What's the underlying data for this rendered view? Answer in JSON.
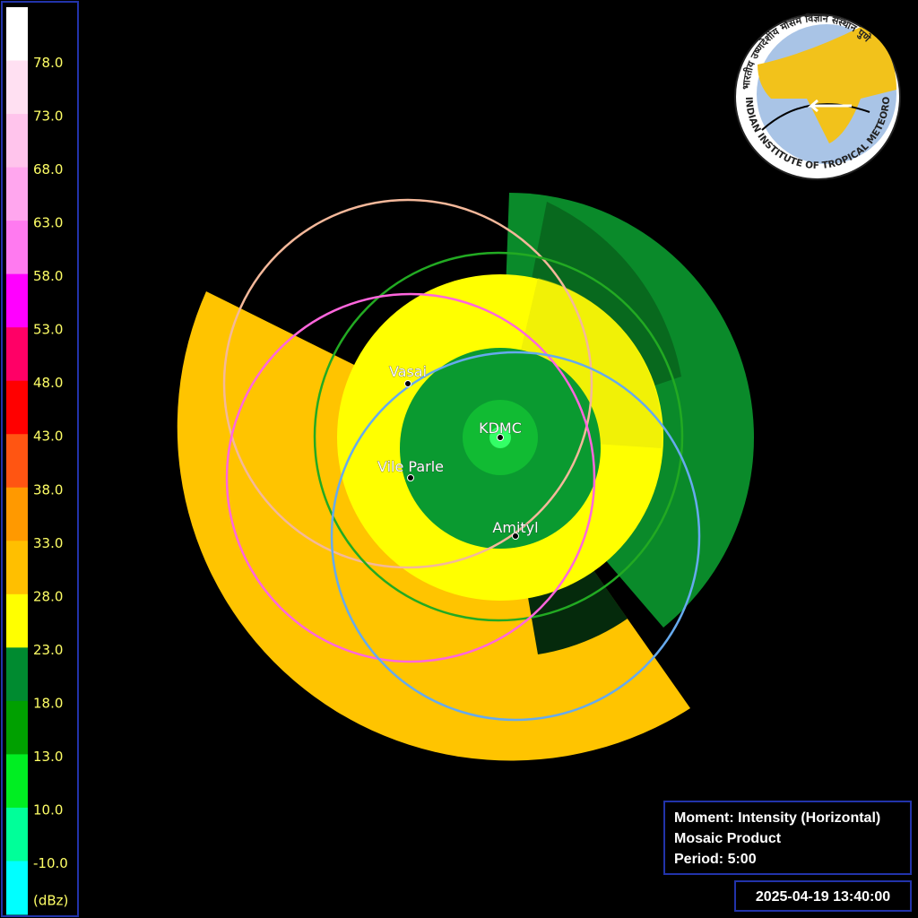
{
  "legend": {
    "labels": [
      "78.0",
      "73.0",
      "68.0",
      "63.0",
      "58.0",
      "53.0",
      "48.0",
      "43.0",
      "38.0",
      "33.0",
      "28.0",
      "23.0",
      "18.0",
      "13.0",
      "10.0",
      "-10.0"
    ],
    "unit": "(dBz)"
  },
  "stations": [
    {
      "label": "KDMC"
    },
    {
      "label": "Vasai"
    },
    {
      "label": "Vile Parle"
    },
    {
      "label": "Amityl"
    }
  ],
  "info": {
    "lines": [
      "Moment: Intensity (Horizontal)",
      "Mosaic Product",
      "Period: 5:00"
    ]
  },
  "timestamp": "2025-04-19 13:40:00",
  "logo": {
    "text_en": "INDIAN INSTITUTE OF TROPICAL METEOROLOGY PUNE",
    "text_hi": "भारतीय उष्णदेशीय मौसम विज्ञान संस्थान पुणे"
  }
}
